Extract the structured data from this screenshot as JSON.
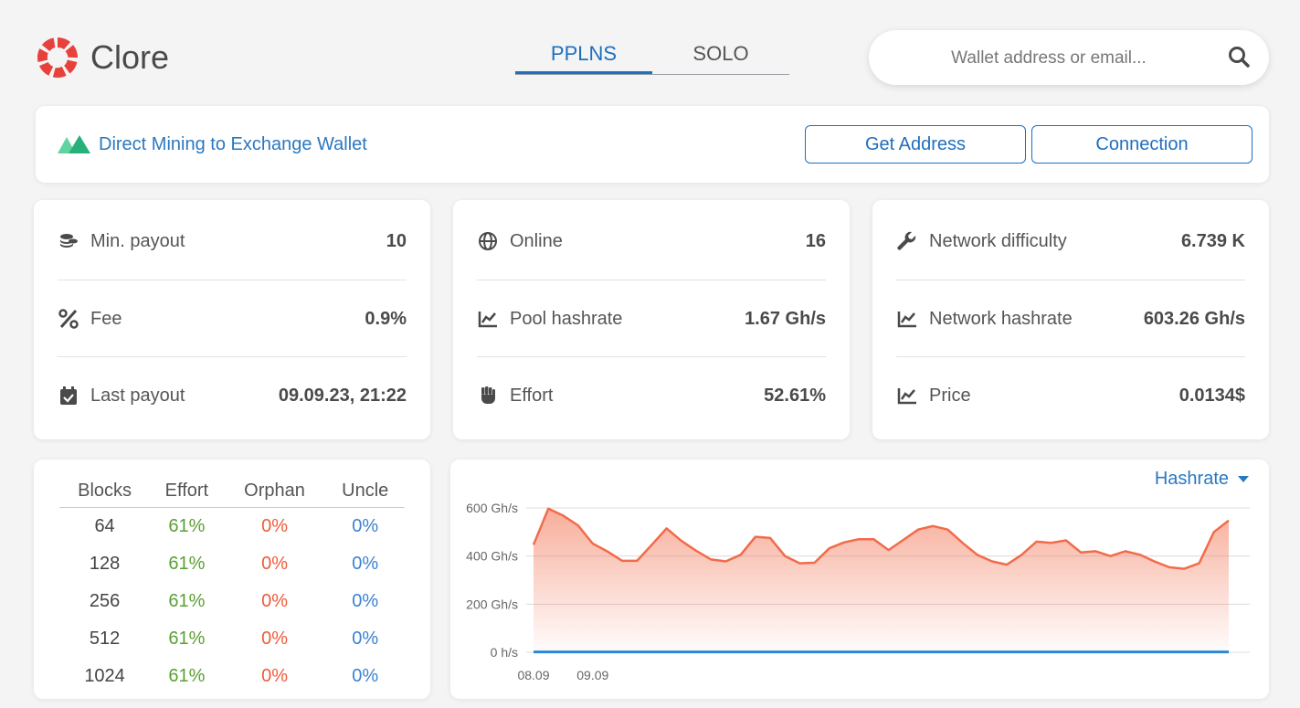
{
  "header": {
    "brand": "Clore",
    "tabs": [
      {
        "label": "PPLNS",
        "active": true
      },
      {
        "label": "SOLO",
        "active": false
      }
    ],
    "search_placeholder": "Wallet address or email...",
    "search_icon": "search-icon"
  },
  "banner": {
    "text": "Direct Mining to Exchange Wallet",
    "get_address": "Get Address",
    "connection": "Connection"
  },
  "stats": [
    [
      {
        "icon": "coins-icon",
        "label": "Min. payout",
        "value": "10"
      },
      {
        "icon": "percent-icon",
        "label": "Fee",
        "value": "0.9%"
      },
      {
        "icon": "calendar-check-icon",
        "label": "Last payout",
        "value": "09.09.23, 21:22"
      }
    ],
    [
      {
        "icon": "globe-icon",
        "label": "Online",
        "value": "16"
      },
      {
        "icon": "chart-line-icon",
        "label": "Pool hashrate",
        "value": "1.67 Gh/s"
      },
      {
        "icon": "fist-icon",
        "label": "Effort",
        "value": "52.61%"
      }
    ],
    [
      {
        "icon": "wrench-icon",
        "label": "Network difficulty",
        "value": "6.739 K"
      },
      {
        "icon": "chart-line-icon",
        "label": "Network hashrate",
        "value": "603.26 Gh/s"
      },
      {
        "icon": "chart-line-icon",
        "label": "Price",
        "value": "0.0134$"
      }
    ]
  ],
  "blocks_table": {
    "headers": [
      "Blocks",
      "Effort",
      "Orphan",
      "Uncle"
    ],
    "rows": [
      [
        "64",
        "61%",
        "0%",
        "0%"
      ],
      [
        "128",
        "61%",
        "0%",
        "0%"
      ],
      [
        "256",
        "61%",
        "0%",
        "0%"
      ],
      [
        "512",
        "61%",
        "0%",
        "0%"
      ],
      [
        "1024",
        "61%",
        "0%",
        "0%"
      ]
    ]
  },
  "chart_selector": "Hashrate",
  "colors": {
    "accent": "#1e6fbf",
    "series_network": "#f26b4a",
    "series_pool": "#2a88d8",
    "effort_green": "#5aa032",
    "orphan_red": "#ef5b3a",
    "uncle_blue": "#3b82d0"
  },
  "chart_data": {
    "type": "area",
    "ylabel_ticks": [
      "0 h/s",
      "200 Gh/s",
      "400 Gh/s",
      "600 Gh/s"
    ],
    "y_ticks": [
      0,
      200,
      400,
      600
    ],
    "ylim": [
      0,
      600
    ],
    "x_tick_labels": [
      {
        "label": "08.09",
        "index": 0
      },
      {
        "label": "09.09",
        "index": 4
      }
    ],
    "series": [
      {
        "values": [
          447,
          597,
          568,
          528,
          452,
          419,
          380,
          380,
          447,
          515,
          463,
          422,
          386,
          378,
          405,
          480,
          475,
          400,
          370,
          372,
          432,
          457,
          470,
          470,
          425,
          467,
          510,
          525,
          510,
          455,
          405,
          378,
          364,
          405,
          460,
          455,
          465,
          415,
          420,
          400,
          420,
          405,
          377,
          353,
          347,
          370,
          500,
          548
        ]
      },
      {
        "values": [
          1.67,
          1.67,
          1.67,
          1.67,
          1.67,
          1.67,
          1.67,
          1.67,
          1.67,
          1.67,
          1.67,
          1.67,
          1.67,
          1.67,
          1.67,
          1.67,
          1.67,
          1.67,
          1.67,
          1.67,
          1.67,
          1.67,
          1.67,
          1.67,
          1.67,
          1.67,
          1.67,
          1.67,
          1.67,
          1.67,
          1.67,
          1.67,
          1.67,
          1.67,
          1.67,
          1.67,
          1.67,
          1.67,
          1.67,
          1.67,
          1.67,
          1.67,
          1.67,
          1.67,
          1.67,
          1.67,
          1.67,
          1.67
        ]
      }
    ],
    "grid": true,
    "legend": "none"
  }
}
